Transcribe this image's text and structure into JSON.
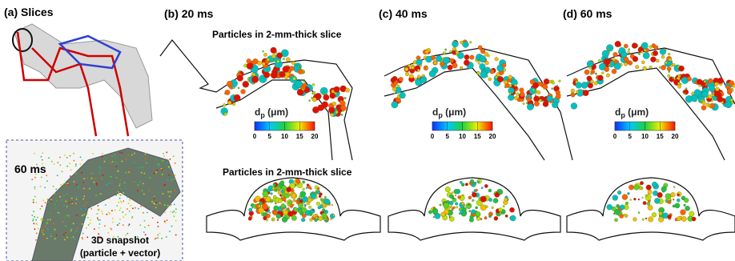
{
  "panels": [
    {
      "label": "(a) Slices"
    },
    {
      "label": "(b) 20 ms"
    },
    {
      "label": "(c) 40 ms"
    },
    {
      "label": "(d) 60 ms"
    }
  ],
  "slice_titles": [
    "Particles in 2-mm-thick slice",
    "Particles in 2-mm-thick slice"
  ],
  "inset": {
    "time": "60 ms",
    "caption": [
      "3D snapshot",
      "(particle + vector)"
    ]
  },
  "colorbar": {
    "symbol": "d",
    "subscript": "p",
    "unit": "(μm)",
    "ticks": [
      0,
      5,
      10,
      15,
      20
    ]
  }
}
